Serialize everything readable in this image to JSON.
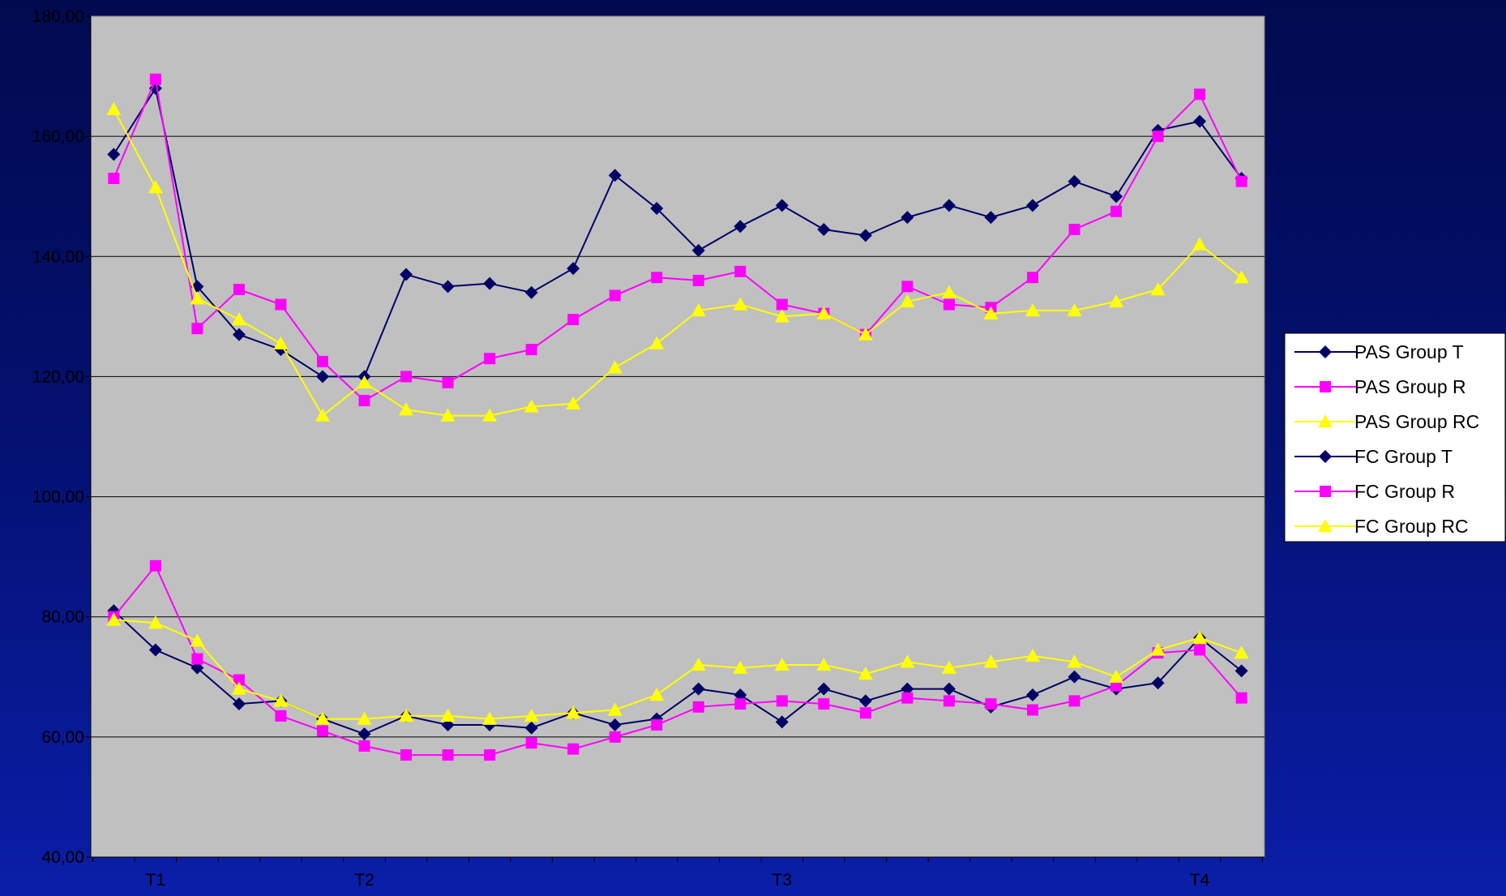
{
  "chart_data": {
    "type": "line",
    "title": "",
    "xlabel": "",
    "ylabel": "",
    "ylim": [
      40,
      180
    ],
    "y_ticks": [
      "40,00",
      "60,00",
      "80,00",
      "100,00",
      "120,00",
      "140,00",
      "160,00",
      "180,00"
    ],
    "y_tick_values": [
      40,
      60,
      80,
      100,
      120,
      140,
      160,
      180
    ],
    "n_points": 28,
    "x_tick_labels": [
      {
        "index": 1,
        "label": "T1"
      },
      {
        "index": 6,
        "label": "T2"
      },
      {
        "index": 16,
        "label": "T3"
      },
      {
        "index": 26,
        "label": "T4"
      }
    ],
    "grid": true,
    "legend_position": "right",
    "plot_background": "#c0c0c0",
    "series": [
      {
        "name": "PAS Group T",
        "color": "#000066",
        "marker": "diamond",
        "values": [
          157,
          168,
          135,
          127,
          124.5,
          120,
          120,
          137,
          135,
          135.5,
          134,
          138,
          153.5,
          148,
          141,
          145,
          148.5,
          144.5,
          143.5,
          146.5,
          148.5,
          146.5,
          148.5,
          152.5,
          150,
          161,
          162.5,
          153
        ]
      },
      {
        "name": "PAS Group R",
        "color": "#ff00ff",
        "marker": "square",
        "values": [
          153,
          169.5,
          128,
          134.5,
          132,
          122.5,
          116,
          120,
          119,
          123,
          124.5,
          129.5,
          133.5,
          136.5,
          136,
          137.5,
          132,
          130.5,
          127,
          135,
          132,
          131.5,
          136.5,
          144.5,
          147.5,
          160,
          167,
          152.5
        ]
      },
      {
        "name": "PAS Group RC",
        "color": "#ffff00",
        "marker": "triangle",
        "values": [
          164.5,
          151.5,
          133,
          129.5,
          125.5,
          113.5,
          119,
          114.5,
          113.5,
          113.5,
          115,
          115.5,
          121.5,
          125.5,
          131,
          132,
          130,
          130.5,
          127,
          132.5,
          134,
          130.5,
          131,
          131,
          132.5,
          134.5,
          142,
          136.5
        ]
      },
      {
        "name": "FC Group T",
        "color": "#000066",
        "marker": "diamond",
        "values": [
          81,
          74.5,
          71.5,
          65.5,
          66,
          63,
          60.5,
          63.5,
          62,
          62,
          61.5,
          64,
          62,
          63,
          68,
          67,
          62.5,
          68,
          66,
          68,
          68,
          65,
          67,
          70,
          68,
          69,
          76.5,
          71
        ]
      },
      {
        "name": "FC Group R",
        "color": "#ff00ff",
        "marker": "square",
        "values": [
          80,
          88.5,
          73,
          69.5,
          63.5,
          61,
          58.5,
          57,
          57,
          57,
          59,
          58,
          60,
          62,
          65,
          65.5,
          66,
          65.5,
          64,
          66.5,
          66,
          65.5,
          64.5,
          66,
          68.5,
          74,
          74.5,
          66.5
        ]
      },
      {
        "name": "FC Group RC",
        "color": "#ffff00",
        "marker": "triangle",
        "values": [
          79.5,
          79,
          76,
          68,
          66,
          63,
          63,
          63.5,
          63.5,
          63,
          63.5,
          64,
          64.5,
          67,
          72,
          71.5,
          72,
          72,
          70.5,
          72.5,
          71.5,
          72.5,
          73.5,
          72.5,
          70,
          74.5,
          76.5,
          74
        ]
      }
    ]
  }
}
